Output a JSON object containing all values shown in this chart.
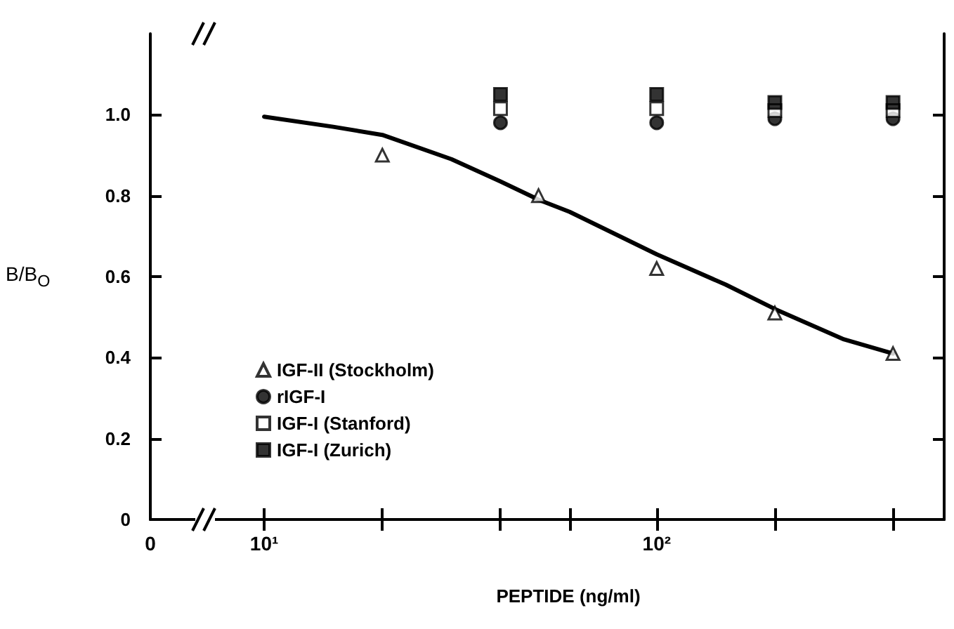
{
  "chart_data": {
    "type": "scatter",
    "xlabel": "PEPTIDE (ng/ml)",
    "ylabel": "B/B$_{O}$",
    "log": "x",
    "xlim": [
      0,
      540
    ],
    "xticks": [
      0,
      {
        "value": 10,
        "label": "10¹"
      },
      {
        "value": 20,
        "label": null
      },
      {
        "value": 40,
        "label": null
      },
      {
        "value": 60,
        "label": null
      },
      {
        "value": 100,
        "label": "10²"
      },
      {
        "value": 200,
        "label": null
      },
      {
        "value": 400,
        "label": null
      }
    ],
    "ylim": [
      0,
      1.2
    ],
    "yticks": [
      0,
      0.2,
      0.4,
      0.6,
      0.8,
      {
        "value": 1,
        "label": "1.0"
      }
    ],
    "grid": false,
    "legend": "bottom left",
    "series": [
      {
        "type": "line",
        "color": "#000000",
        "marker": "none",
        "line_style": "solid",
        "x": [
          10,
          15,
          20,
          30,
          40,
          50,
          60,
          100,
          150,
          200,
          300,
          400
        ],
        "values": [
          0.995,
          0.97,
          0.95,
          0.89,
          0.835,
          0.79,
          0.76,
          0.655,
          0.58,
          0.52,
          0.445,
          0.41
        ]
      },
      {
        "name": "IGF-II (Stockholm)",
        "marker": "triangle",
        "color": "#ffffff",
        "x": [
          20,
          50,
          100,
          200,
          400
        ],
        "values": [
          0.9,
          0.8,
          0.62,
          0.51,
          0.41
        ]
      },
      {
        "name": "rIGF-I",
        "marker": "circle",
        "color": "#000000",
        "x": [
          40,
          100,
          200,
          400
        ],
        "values": [
          0.98,
          0.98,
          0.99,
          0.99
        ]
      },
      {
        "name": "IGF-I (Stanford)",
        "marker": "square",
        "color": "#ffffff",
        "x": [
          40,
          100,
          200,
          400
        ],
        "values": [
          1.015,
          1.015,
          1.01,
          1.01
        ]
      },
      {
        "name": "IGF-I (Zurich)",
        "marker": "square",
        "color": "#000000",
        "x": [
          40,
          100,
          200,
          400
        ],
        "values": [
          1.05,
          1.05,
          1.03,
          1.03
        ]
      }
    ]
  }
}
